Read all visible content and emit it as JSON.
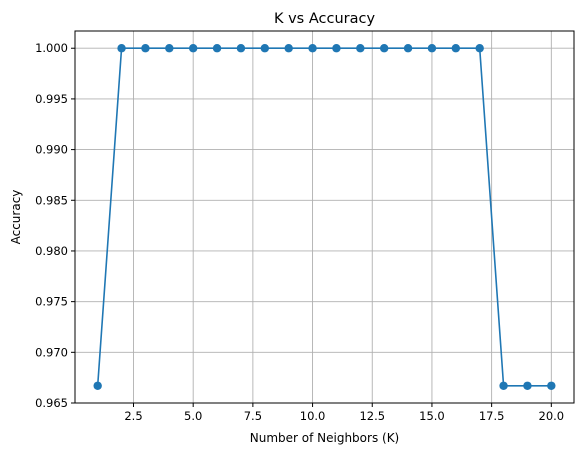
{
  "chart_data": {
    "type": "line",
    "title": "K vs Accuracy",
    "xlabel": "Number of Neighbors (K)",
    "ylabel": "Accuracy",
    "xlim": [
      0.05,
      20.95
    ],
    "ylim": [
      0.965,
      1.0017
    ],
    "xticks": [
      2.5,
      5.0,
      7.5,
      10.0,
      12.5,
      15.0,
      17.5,
      20.0
    ],
    "xtick_labels": [
      "2.5",
      "5.0",
      "7.5",
      "10.0",
      "12.5",
      "15.0",
      "17.5",
      "20.0"
    ],
    "yticks": [
      0.965,
      0.97,
      0.975,
      0.98,
      0.985,
      0.99,
      0.995,
      1.0
    ],
    "ytick_labels": [
      "0.965",
      "0.970",
      "0.975",
      "0.980",
      "0.985",
      "0.990",
      "0.995",
      "1.000"
    ],
    "grid": true,
    "series": [
      {
        "color": "#1f77b4",
        "marker": "circle",
        "x": [
          1,
          2,
          3,
          4,
          5,
          6,
          7,
          8,
          9,
          10,
          11,
          12,
          13,
          14,
          15,
          16,
          17,
          18,
          19,
          20
        ],
        "y": [
          0.9667,
          1.0,
          1.0,
          1.0,
          1.0,
          1.0,
          1.0,
          1.0,
          1.0,
          1.0,
          1.0,
          1.0,
          1.0,
          1.0,
          1.0,
          1.0,
          1.0,
          0.9667,
          0.9667,
          0.9667
        ]
      }
    ]
  }
}
